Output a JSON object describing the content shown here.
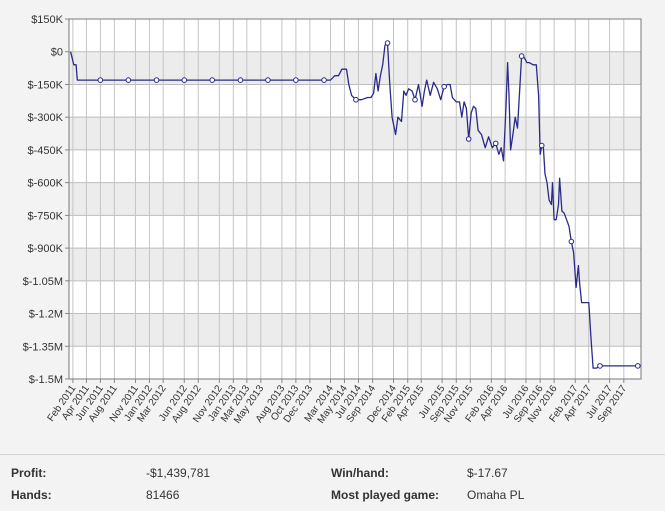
{
  "chart_data": {
    "type": "line",
    "title": "",
    "xlabel": "",
    "ylabel": "",
    "ylim": [
      -1500000,
      150000
    ],
    "xlim": [
      "2011-01-15",
      "2017-11-15"
    ],
    "y_ticks": [
      {
        "value": 150000,
        "label": "$150K"
      },
      {
        "value": 0,
        "label": "$0"
      },
      {
        "value": -150000,
        "label": "$-150K"
      },
      {
        "value": -300000,
        "label": "$-300K"
      },
      {
        "value": -450000,
        "label": "$-450K"
      },
      {
        "value": -600000,
        "label": "$-600K"
      },
      {
        "value": -750000,
        "label": "$-750K"
      },
      {
        "value": -900000,
        "label": "$-900K"
      },
      {
        "value": -1050000,
        "label": "$-1.05M"
      },
      {
        "value": -1200000,
        "label": "$-1.2M"
      },
      {
        "value": -1350000,
        "label": "$-1.35M"
      },
      {
        "value": -1500000,
        "label": "$-1.5M"
      }
    ],
    "x_ticks": [
      {
        "date": "2011-02-01",
        "label": "Feb 2011"
      },
      {
        "date": "2011-04-01",
        "label": "Apr 2011"
      },
      {
        "date": "2011-06-01",
        "label": "Jun 2011"
      },
      {
        "date": "2011-08-01",
        "label": "Aug 2011"
      },
      {
        "date": "2011-11-01",
        "label": "Nov 2011"
      },
      {
        "date": "2012-01-01",
        "label": "Jan 2012"
      },
      {
        "date": "2012-03-01",
        "label": "Mar 2012"
      },
      {
        "date": "2012-06-01",
        "label": "Jun 2012"
      },
      {
        "date": "2012-08-01",
        "label": "Aug 2012"
      },
      {
        "date": "2012-11-01",
        "label": "Nov 2012"
      },
      {
        "date": "2013-01-01",
        "label": "Jan 2013"
      },
      {
        "date": "2013-03-01",
        "label": "Mar 2013"
      },
      {
        "date": "2013-05-01",
        "label": "May 2013"
      },
      {
        "date": "2013-08-01",
        "label": "Aug 2013"
      },
      {
        "date": "2013-10-01",
        "label": "Oct 2013"
      },
      {
        "date": "2013-12-01",
        "label": "Dec 2013"
      },
      {
        "date": "2014-03-01",
        "label": "Mar 2014"
      },
      {
        "date": "2014-05-01",
        "label": "May 2014"
      },
      {
        "date": "2014-07-01",
        "label": "Jul 2014"
      },
      {
        "date": "2014-09-01",
        "label": "Sep 2014"
      },
      {
        "date": "2014-12-01",
        "label": "Dec 2014"
      },
      {
        "date": "2015-02-01",
        "label": "Feb 2015"
      },
      {
        "date": "2015-04-01",
        "label": "Apr 2015"
      },
      {
        "date": "2015-07-01",
        "label": "Jul 2015"
      },
      {
        "date": "2015-09-01",
        "label": "Sep 2015"
      },
      {
        "date": "2015-11-01",
        "label": "Nov 2015"
      },
      {
        "date": "2016-02-01",
        "label": "Feb 2016"
      },
      {
        "date": "2016-04-01",
        "label": "Apr 2016"
      },
      {
        "date": "2016-07-01",
        "label": "Jul 2016"
      },
      {
        "date": "2016-09-01",
        "label": "Sep 2016"
      },
      {
        "date": "2016-11-01",
        "label": "Nov 2016"
      },
      {
        "date": "2017-02-01",
        "label": "Feb 2017"
      },
      {
        "date": "2017-04-01",
        "label": "Apr 2017"
      },
      {
        "date": "2017-07-01",
        "label": "Jul 2017"
      },
      {
        "date": "2017-09-01",
        "label": "Sep 2017"
      }
    ],
    "series": [
      {
        "points": [
          [
            "2011-01-22",
            0
          ],
          [
            "2011-02-05",
            -60000
          ],
          [
            "2011-02-15",
            -60000
          ],
          [
            "2011-02-20",
            -130000
          ],
          [
            "2014-03-01",
            -130000
          ],
          [
            "2014-03-20",
            -110000
          ],
          [
            "2014-04-05",
            -110000
          ],
          [
            "2014-04-20",
            -80000
          ],
          [
            "2014-05-10",
            -80000
          ],
          [
            "2014-05-20",
            -150000
          ],
          [
            "2014-06-01",
            -200000
          ],
          [
            "2014-06-20",
            -220000
          ],
          [
            "2014-07-15",
            -220000
          ],
          [
            "2014-08-10",
            -210000
          ],
          [
            "2014-08-25",
            -210000
          ],
          [
            "2014-09-05",
            -190000
          ],
          [
            "2014-09-15",
            -100000
          ],
          [
            "2014-09-25",
            -180000
          ],
          [
            "2014-10-05",
            -110000
          ],
          [
            "2014-10-15",
            -60000
          ],
          [
            "2014-10-25",
            30000
          ],
          [
            "2014-11-05",
            40000
          ],
          [
            "2014-11-15",
            -150000
          ],
          [
            "2014-11-25",
            -300000
          ],
          [
            "2014-12-10",
            -380000
          ],
          [
            "2014-12-20",
            -300000
          ],
          [
            "2015-01-05",
            -320000
          ],
          [
            "2015-01-15",
            -180000
          ],
          [
            "2015-01-25",
            -200000
          ],
          [
            "2015-02-05",
            -170000
          ],
          [
            "2015-02-20",
            -180000
          ],
          [
            "2015-03-05",
            -220000
          ],
          [
            "2015-03-20",
            -150000
          ],
          [
            "2015-04-05",
            -250000
          ],
          [
            "2015-04-15",
            -180000
          ],
          [
            "2015-04-25",
            -130000
          ],
          [
            "2015-05-10",
            -200000
          ],
          [
            "2015-05-25",
            -140000
          ],
          [
            "2015-06-10",
            -170000
          ],
          [
            "2015-06-25",
            -220000
          ],
          [
            "2015-07-10",
            -160000
          ],
          [
            "2015-07-25",
            -150000
          ],
          [
            "2015-08-05",
            -150000
          ],
          [
            "2015-08-15",
            -210000
          ],
          [
            "2015-09-01",
            -230000
          ],
          [
            "2015-09-15",
            -230000
          ],
          [
            "2015-09-25",
            -300000
          ],
          [
            "2015-10-05",
            -230000
          ],
          [
            "2015-10-15",
            -260000
          ],
          [
            "2015-10-25",
            -400000
          ],
          [
            "2015-11-05",
            -280000
          ],
          [
            "2015-11-15",
            -250000
          ],
          [
            "2015-11-25",
            -260000
          ],
          [
            "2015-12-05",
            -360000
          ],
          [
            "2015-12-20",
            -380000
          ],
          [
            "2016-01-05",
            -440000
          ],
          [
            "2016-01-20",
            -390000
          ],
          [
            "2016-02-05",
            -440000
          ],
          [
            "2016-02-20",
            -420000
          ],
          [
            "2016-03-05",
            -470000
          ],
          [
            "2016-03-15",
            -440000
          ],
          [
            "2016-03-25",
            -500000
          ],
          [
            "2016-04-05",
            -250000
          ],
          [
            "2016-04-12",
            -50000
          ],
          [
            "2016-04-18",
            -200000
          ],
          [
            "2016-04-25",
            -450000
          ],
          [
            "2016-05-05",
            -380000
          ],
          [
            "2016-05-15",
            -300000
          ],
          [
            "2016-05-25",
            -350000
          ],
          [
            "2016-06-05",
            -150000
          ],
          [
            "2016-06-12",
            -20000
          ],
          [
            "2016-06-18",
            -20000
          ],
          [
            "2016-06-25",
            -30000
          ],
          [
            "2016-07-05",
            -50000
          ],
          [
            "2016-07-15",
            -50000
          ],
          [
            "2016-08-01",
            -60000
          ],
          [
            "2016-08-15",
            -60000
          ],
          [
            "2016-08-25",
            -200000
          ],
          [
            "2016-09-01",
            -470000
          ],
          [
            "2016-09-08",
            -430000
          ],
          [
            "2016-09-15",
            -440000
          ],
          [
            "2016-09-22",
            -560000
          ],
          [
            "2016-10-01",
            -600000
          ],
          [
            "2016-10-10",
            -680000
          ],
          [
            "2016-10-20",
            -700000
          ],
          [
            "2016-10-25",
            -600000
          ],
          [
            "2016-11-01",
            -770000
          ],
          [
            "2016-11-10",
            -770000
          ],
          [
            "2016-11-20",
            -700000
          ],
          [
            "2016-11-25",
            -580000
          ],
          [
            "2016-12-05",
            -730000
          ],
          [
            "2016-12-15",
            -740000
          ],
          [
            "2017-01-05",
            -800000
          ],
          [
            "2017-01-15",
            -870000
          ],
          [
            "2017-01-25",
            -920000
          ],
          [
            "2017-02-05",
            -1080000
          ],
          [
            "2017-02-15",
            -980000
          ],
          [
            "2017-02-20",
            -1060000
          ],
          [
            "2017-03-01",
            -1150000
          ],
          [
            "2017-03-15",
            -1150000
          ],
          [
            "2017-04-01",
            -1150000
          ],
          [
            "2017-04-10",
            -1300000
          ],
          [
            "2017-04-20",
            -1450000
          ],
          [
            "2017-05-05",
            -1450000
          ],
          [
            "2017-05-20",
            -1440000
          ],
          [
            "2017-11-01",
            -1440000
          ]
        ],
        "markers": [
          [
            "2011-06-01",
            -130000
          ],
          [
            "2011-10-01",
            -130000
          ],
          [
            "2012-02-01",
            -130000
          ],
          [
            "2012-06-01",
            -130000
          ],
          [
            "2012-10-01",
            -130000
          ],
          [
            "2013-02-01",
            -130000
          ],
          [
            "2013-06-01",
            -130000
          ],
          [
            "2013-10-01",
            -130000
          ],
          [
            "2014-02-01",
            -130000
          ],
          [
            "2014-06-20",
            -220000
          ],
          [
            "2014-11-05",
            40000
          ],
          [
            "2015-03-05",
            -220000
          ],
          [
            "2015-07-10",
            -160000
          ],
          [
            "2015-10-25",
            -400000
          ],
          [
            "2016-02-20",
            -420000
          ],
          [
            "2016-06-12",
            -20000
          ],
          [
            "2016-09-08",
            -430000
          ],
          [
            "2017-01-15",
            -870000
          ],
          [
            "2017-05-20",
            -1440000
          ],
          [
            "2017-11-01",
            -1440000
          ]
        ]
      }
    ],
    "grid": true,
    "line_color": "#2a2a8a",
    "plot_bg": "#ffffff",
    "band_color": "#ececec"
  },
  "stats": {
    "profit_label": "Profit:",
    "profit_value": "-$1,439,781",
    "winhand_label": "Win/hand:",
    "winhand_value": "$-17.67",
    "hands_label": "Hands:",
    "hands_value": "81466",
    "game_label": "Most played game:",
    "game_value": "Omaha PL"
  }
}
